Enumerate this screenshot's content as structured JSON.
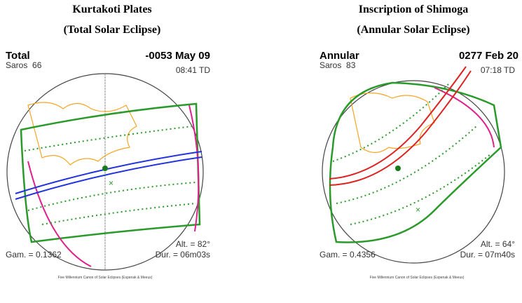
{
  "panels": [
    {
      "heading": [
        "Kurtakoti Plates",
        "(Total Solar Eclipse)"
      ],
      "eclipse_type": "Total",
      "date": "-0053 May 09",
      "saros": "Saros  66",
      "time": "08:41 TD",
      "altitude": "Alt. = 82°",
      "gamma": "Gam. = 0.1362",
      "duration": "Dur. = 06m03s",
      "footer": "Five Millennium Canon of Solar Eclipses (Espenak & Meeus)"
    },
    {
      "heading": [
        "Inscription of Shimoga",
        "(Annular Solar Eclipse)"
      ],
      "eclipse_type": "Annular",
      "date": "0277 Feb 20",
      "saros": "Saros  83",
      "time": "07:18 TD",
      "altitude": "Alt. = 64°",
      "gamma": "Gam. = 0.4356",
      "duration": "Dur. = 07m40s",
      "footer": "Five Millennium Canon of Solar Eclipses (Espenak & Meeus)"
    }
  ]
}
